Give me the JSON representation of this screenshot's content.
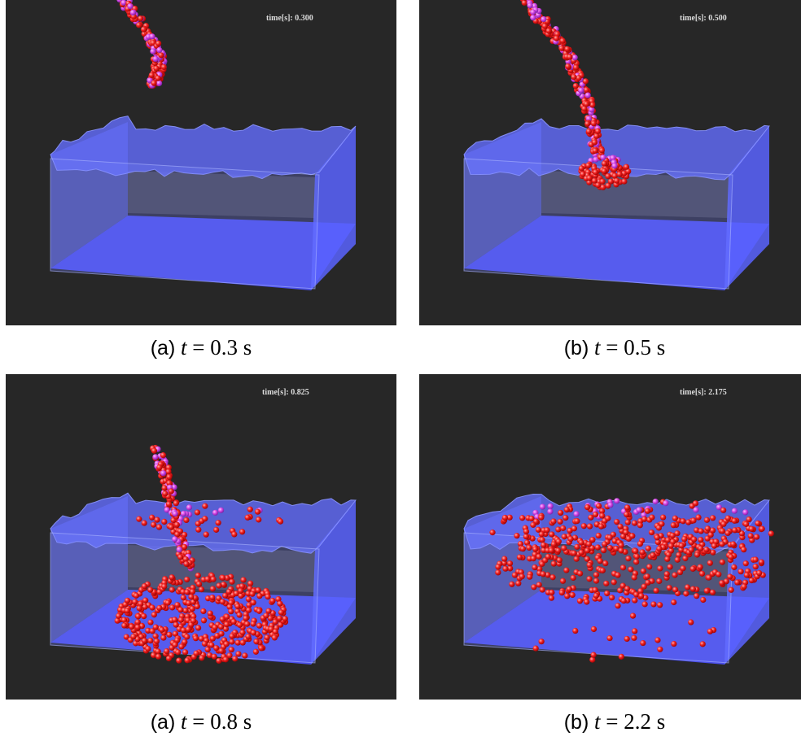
{
  "panels": [
    {
      "time_label": "time[s]: 0.300",
      "caption": {
        "label": "(a)",
        "variable": "t",
        "rest": "= 0.3 s"
      }
    },
    {
      "time_label": "time[s]: 0.500",
      "caption": {
        "label": "(b)",
        "variable": "t",
        "rest": "= 0.5 s"
      }
    },
    {
      "time_label": "time[s]: 0.825",
      "caption": {
        "label": "(a)",
        "variable": "t",
        "rest": "= 0.8 s"
      }
    },
    {
      "time_label": "time[s]: 2.175",
      "caption": {
        "label": "(b)",
        "variable": "t",
        "rest": "= 2.2 s"
      }
    }
  ]
}
